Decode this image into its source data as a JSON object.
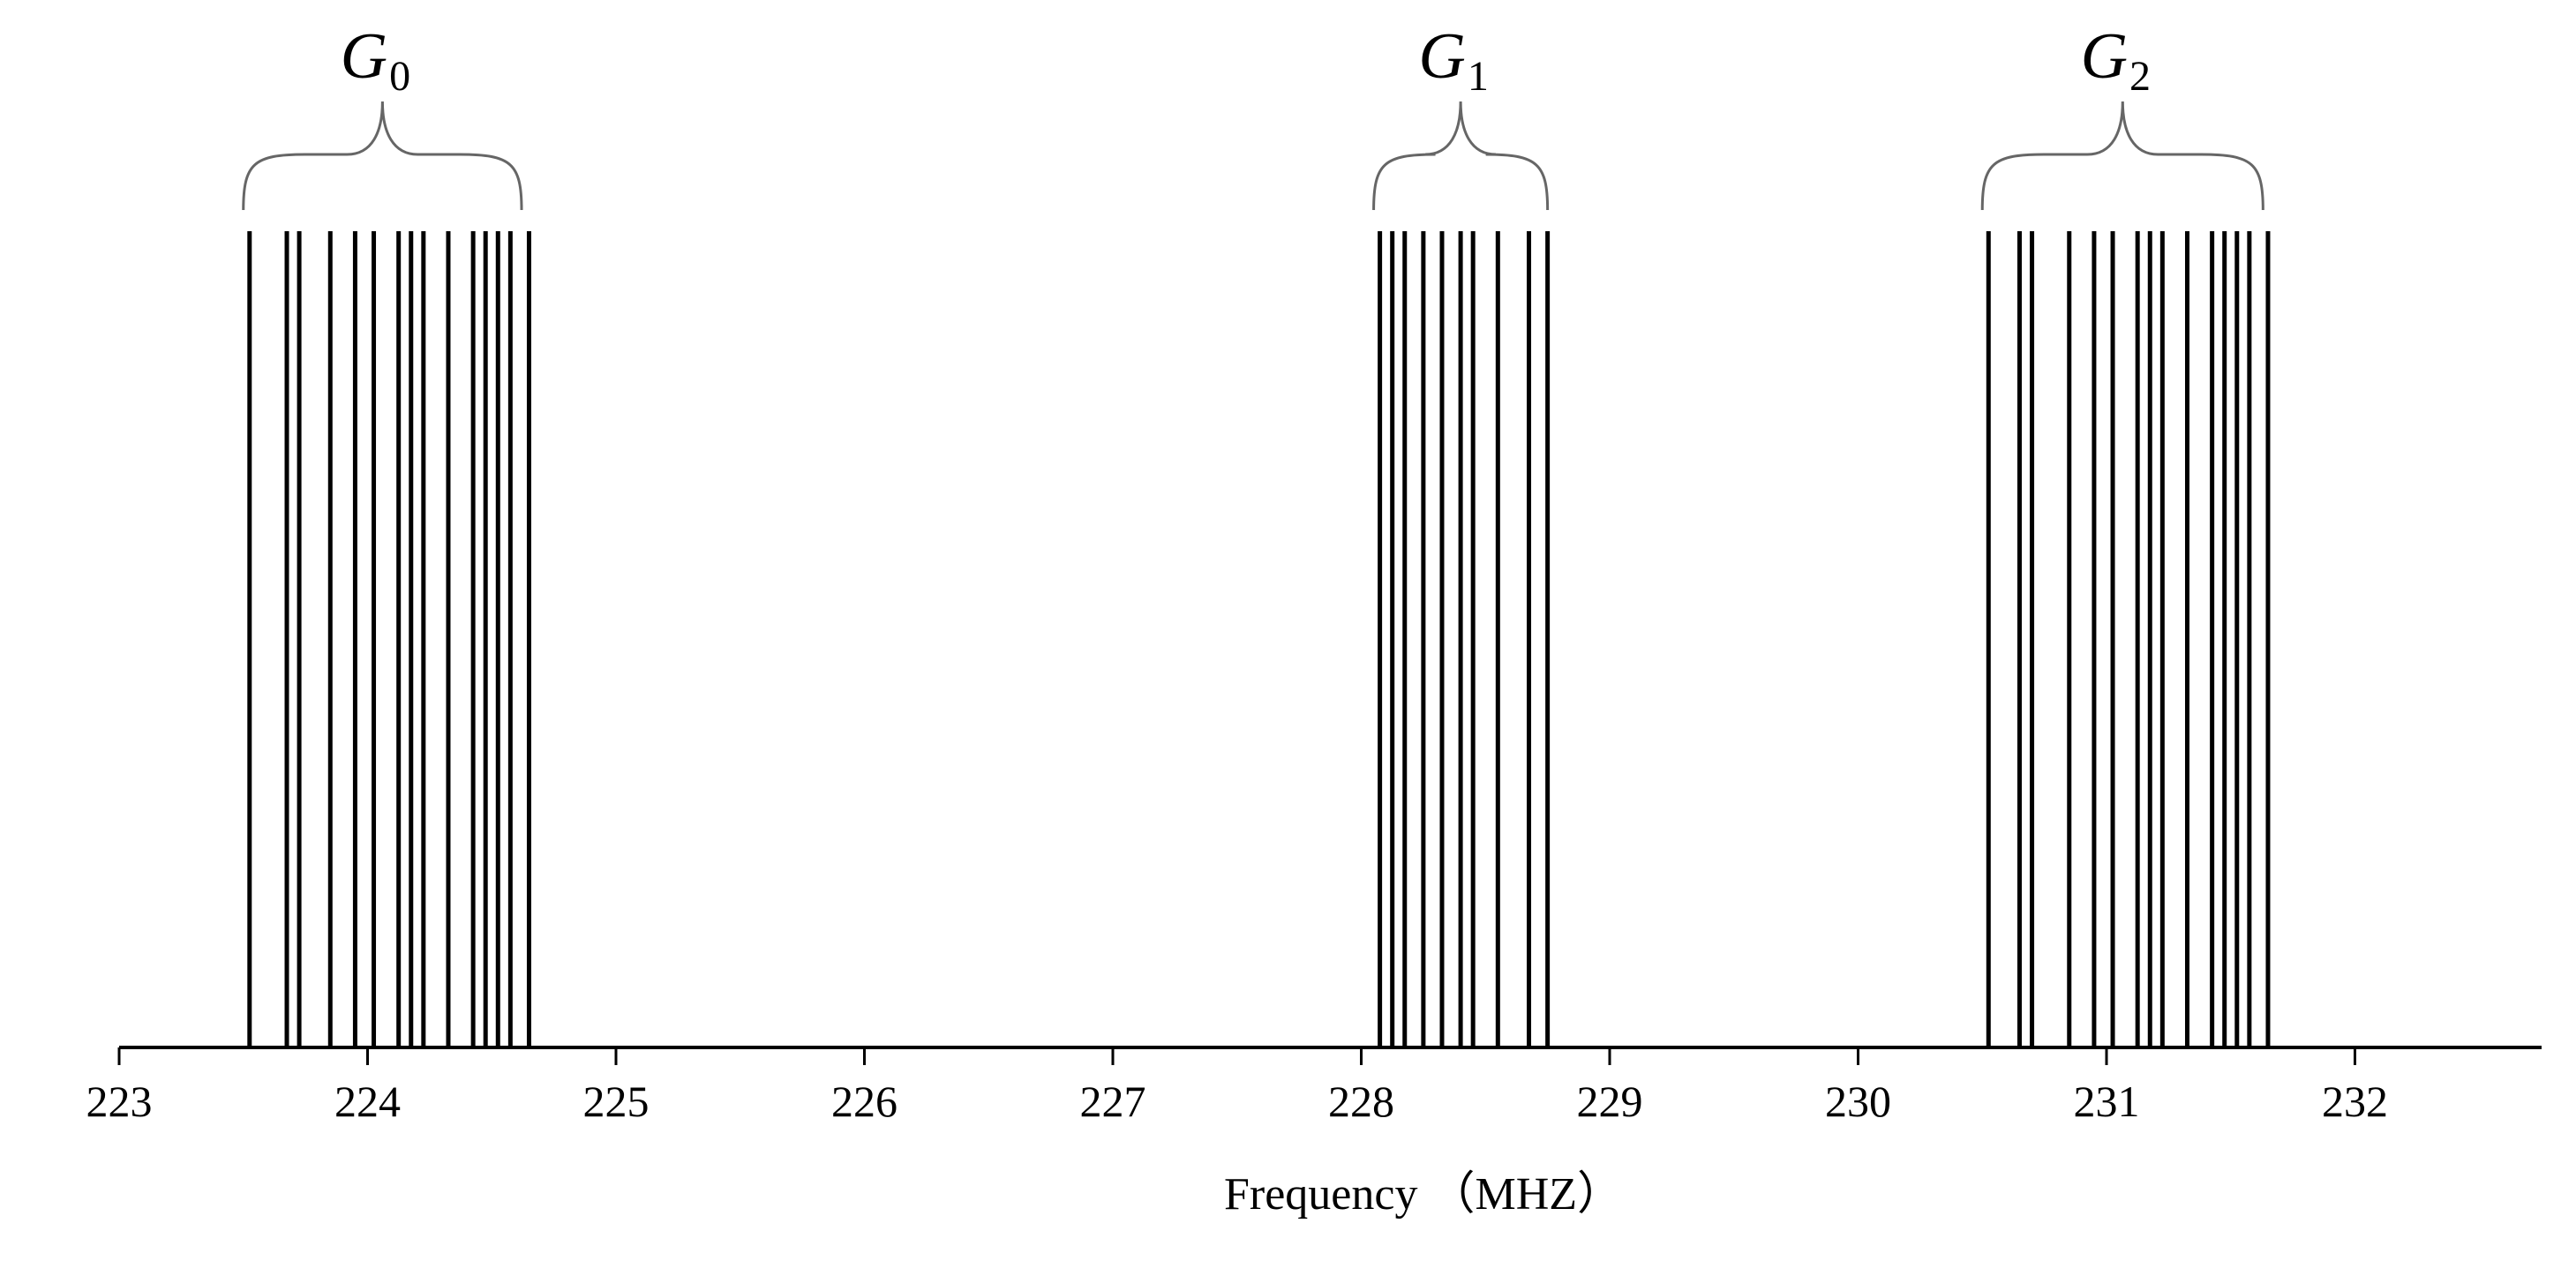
{
  "chart_data": {
    "type": "spike",
    "xlabel": "Frequency （MHZ）",
    "xlim": [
      223,
      232.75
    ],
    "ticks": [
      223,
      224,
      225,
      226,
      227,
      228,
      229,
      230,
      231,
      232
    ],
    "tick_labels": [
      "223",
      "224",
      "225",
      "226",
      "227",
      "228",
      "229",
      "230",
      "231",
      "232"
    ],
    "groups": [
      {
        "label": "G",
        "subscript": "0",
        "range": [
          223.5,
          224.62
        ],
        "lines": [
          223.525,
          223.675,
          223.725,
          223.85,
          223.95,
          224.025,
          224.125,
          224.175,
          224.225,
          224.325,
          224.425,
          224.475,
          224.525,
          224.575,
          224.65
        ]
      },
      {
        "label": "G",
        "subscript": "1",
        "range": [
          228.05,
          228.75
        ],
        "lines": [
          228.075,
          228.125,
          228.175,
          228.25,
          228.325,
          228.4,
          228.45,
          228.55,
          228.675,
          228.75
        ]
      },
      {
        "label": "G",
        "subscript": "2",
        "range": [
          230.5,
          231.63
        ],
        "lines": [
          230.525,
          230.65,
          230.7,
          230.85,
          230.95,
          231.025,
          231.125,
          231.175,
          231.225,
          231.325,
          231.425,
          231.475,
          231.525,
          231.575,
          231.65
        ]
      }
    ]
  }
}
